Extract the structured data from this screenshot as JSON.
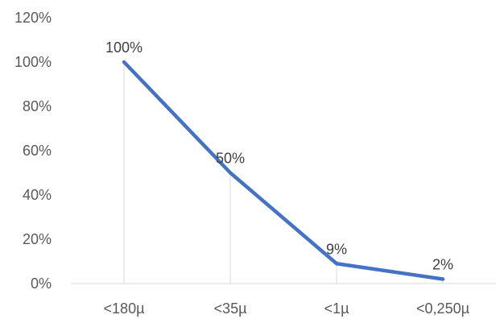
{
  "chart_data": {
    "type": "line",
    "title": "",
    "xlabel": "",
    "ylabel": "",
    "categories": [
      "<180µ",
      "<35µ",
      "<1µ",
      "<0,250µ"
    ],
    "series": [
      {
        "values": [
          1.0,
          0.5,
          0.09,
          0.02
        ],
        "color": "#4472C4"
      }
    ],
    "data_labels": [
      "100%",
      "50%",
      "9%",
      "2%"
    ],
    "ylim": [
      0,
      1.2
    ],
    "yticks": [
      0,
      0.2,
      0.4,
      0.6,
      0.8,
      1.0,
      1.2
    ],
    "ytick_labels": [
      "0%",
      "20%",
      "40%",
      "60%",
      "80%",
      "100%",
      "120%"
    ],
    "grid": false,
    "drop_lines": true,
    "legend": "none"
  }
}
